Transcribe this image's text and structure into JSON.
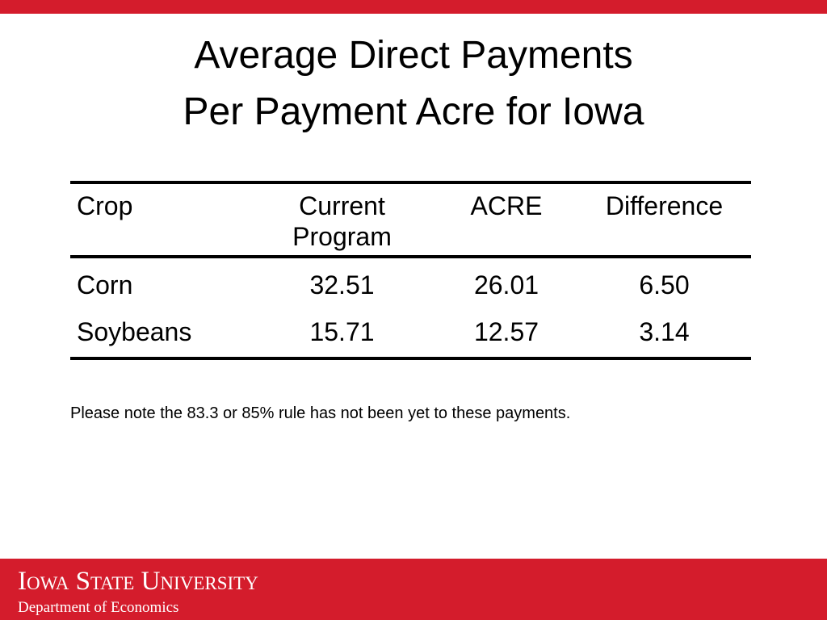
{
  "header": {
    "title": [
      "Average Direct Payments",
      "Per Payment Acre for Iowa"
    ]
  },
  "table": {
    "columns": [
      "Crop",
      "Current Program",
      "ACRE",
      "Difference"
    ],
    "rows": [
      [
        "Corn",
        "32.51",
        "26.01",
        "6.50"
      ],
      [
        "Soybeans",
        "15.71",
        "12.57",
        "3.14"
      ]
    ]
  },
  "note": "Please note the 83.3 or 85% rule has not been yet to these payments.",
  "footer": {
    "institution": "Iowa State University",
    "department": "Department of Economics"
  }
}
